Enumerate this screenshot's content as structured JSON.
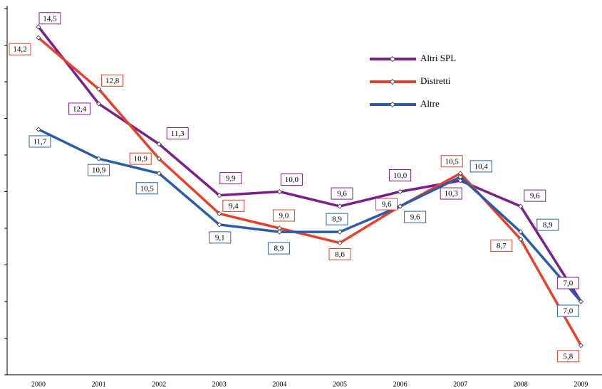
{
  "chart_data": {
    "type": "line",
    "categories": [
      "2000",
      "2001",
      "2002",
      "2003",
      "2004",
      "2005",
      "2006",
      "2007",
      "2008",
      "2009"
    ],
    "series": [
      {
        "name": "Altri SPL",
        "color": "#7b1f8c",
        "values": [
          14.5,
          12.4,
          11.3,
          9.9,
          10.0,
          9.6,
          10.0,
          10.3,
          9.6,
          7.0
        ],
        "value_labels": [
          "14,5",
          "12,4",
          "11,3",
          "9,9",
          "10,0",
          "9,6",
          "10,0",
          "10,3",
          "9,6",
          "7,0"
        ]
      },
      {
        "name": "Distretti",
        "color": "#e8402a",
        "values": [
          14.2,
          12.8,
          10.9,
          9.4,
          9.0,
          8.6,
          9.6,
          10.5,
          8.7,
          5.8
        ],
        "value_labels": [
          "14,2",
          "12,8",
          "10,9",
          "9,4",
          "9,0",
          "8,6",
          "9,6",
          "10,5",
          "8,7",
          "5,8"
        ]
      },
      {
        "name": "Altre",
        "color": "#2a5caa",
        "values": [
          11.7,
          10.9,
          10.5,
          9.1,
          8.9,
          8.9,
          9.6,
          10.4,
          8.9,
          7.0
        ],
        "value_labels": [
          "11,7",
          "10,9",
          "10,5",
          "9,1",
          "8,9",
          "8,9",
          "9,6",
          "10,4",
          "8,9",
          "7,0"
        ]
      }
    ],
    "ylim": [
      5,
      15
    ],
    "yticks": [
      5,
      6,
      7,
      8,
      9,
      10,
      11,
      12,
      13,
      14,
      15
    ],
    "legend": "upper right"
  }
}
